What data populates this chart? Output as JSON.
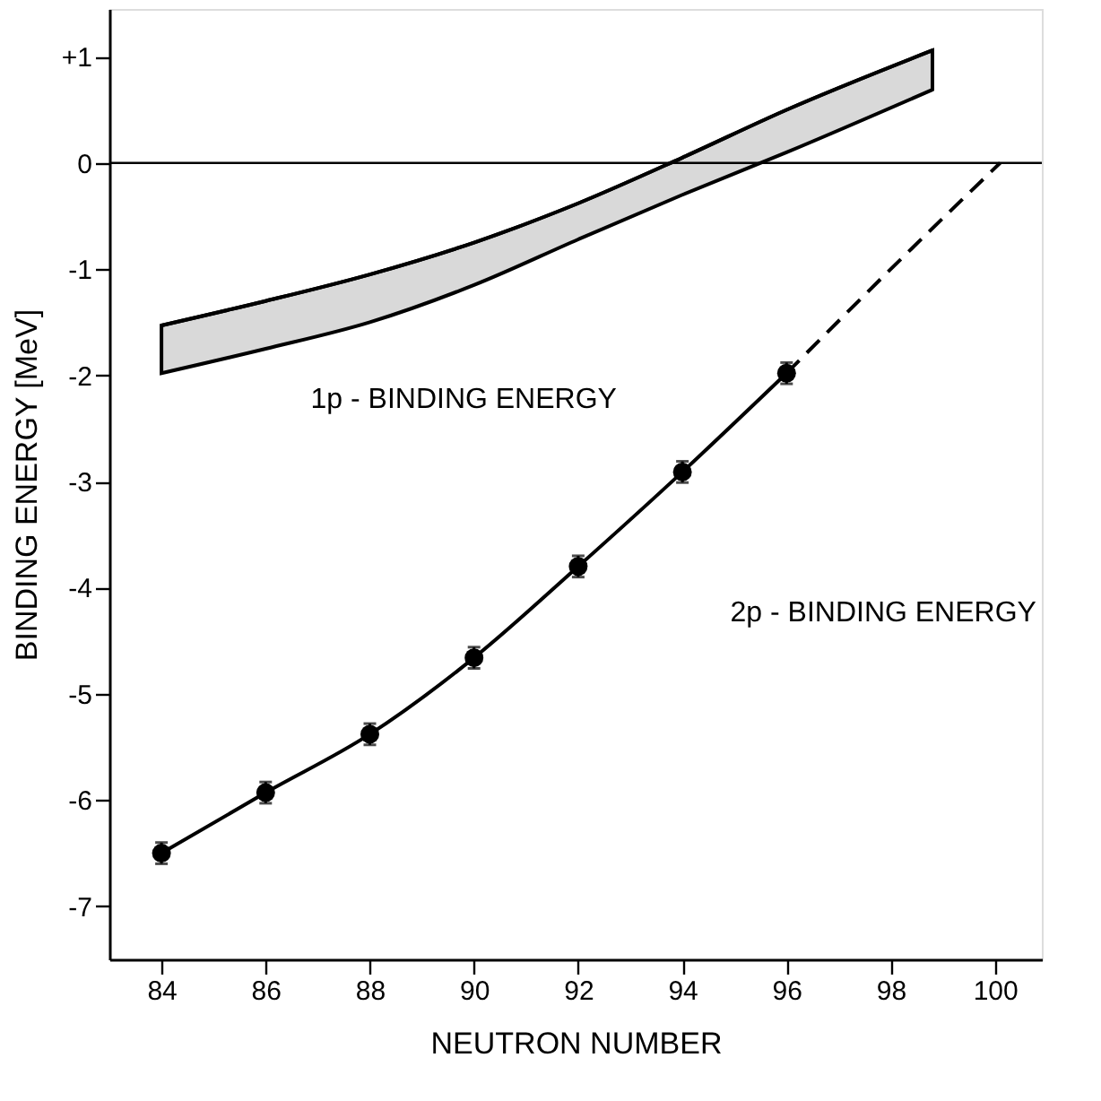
{
  "chart_data": {
    "type": "line",
    "xlabel": "NEUTRON NUMBER",
    "ylabel": "BINDING ENERGY [MeV]",
    "xlim": [
      83,
      100.9
    ],
    "xticks": [
      84,
      86,
      88,
      90,
      92,
      94,
      96,
      98,
      100
    ],
    "ylim": [
      -7.5,
      1.45
    ],
    "yticks": [
      {
        "value": 1,
        "label": "+1"
      },
      0,
      -1,
      -2,
      -3,
      -4,
      -5,
      -6,
      -7
    ],
    "grid": false,
    "series": [
      {
        "type": "line",
        "color": "#000000",
        "marker": "none",
        "line_style": "solid",
        "x": [
          84,
          86,
          88,
          90,
          92,
          94,
          96,
          98.8
        ],
        "values": [
          -1.53,
          -1.3,
          -1.05,
          -0.75,
          -0.38,
          0.05,
          0.5,
          1.06
        ],
        "lower": [
          -1.98,
          -1.75,
          -1.5,
          -1.15,
          -0.72,
          -0.3,
          0.1,
          0.69
        ],
        "upper": [
          -1.53,
          -1.3,
          -1.05,
          -0.75,
          -0.38,
          0.05,
          0.5,
          1.06
        ]
      },
      {
        "color": "#000000",
        "marker": "circle",
        "line_style": "solid",
        "x": [
          84,
          86,
          88,
          90,
          92,
          94,
          96
        ],
        "values": [
          -6.5,
          -5.93,
          -5.38,
          -4.66,
          -3.8,
          -2.91,
          -1.98
        ],
        "errors": [
          0.1,
          0.1,
          0.1,
          0.1,
          0.1,
          0.1,
          0.1
        ]
      },
      {
        "color": "#000000",
        "marker": "none",
        "line_style": "dashed",
        "x": [
          96,
          98,
          100.1
        ],
        "values": [
          -1.98,
          -1.0,
          0.0
        ]
      }
    ],
    "ref_lines": [
      {
        "axis": "y",
        "value": 0,
        "color": "#000000",
        "line_style": "solid"
      }
    ],
    "annotations": [
      "1p - BINDING ENERGY",
      "2p - BINDING ENERGY"
    ]
  }
}
